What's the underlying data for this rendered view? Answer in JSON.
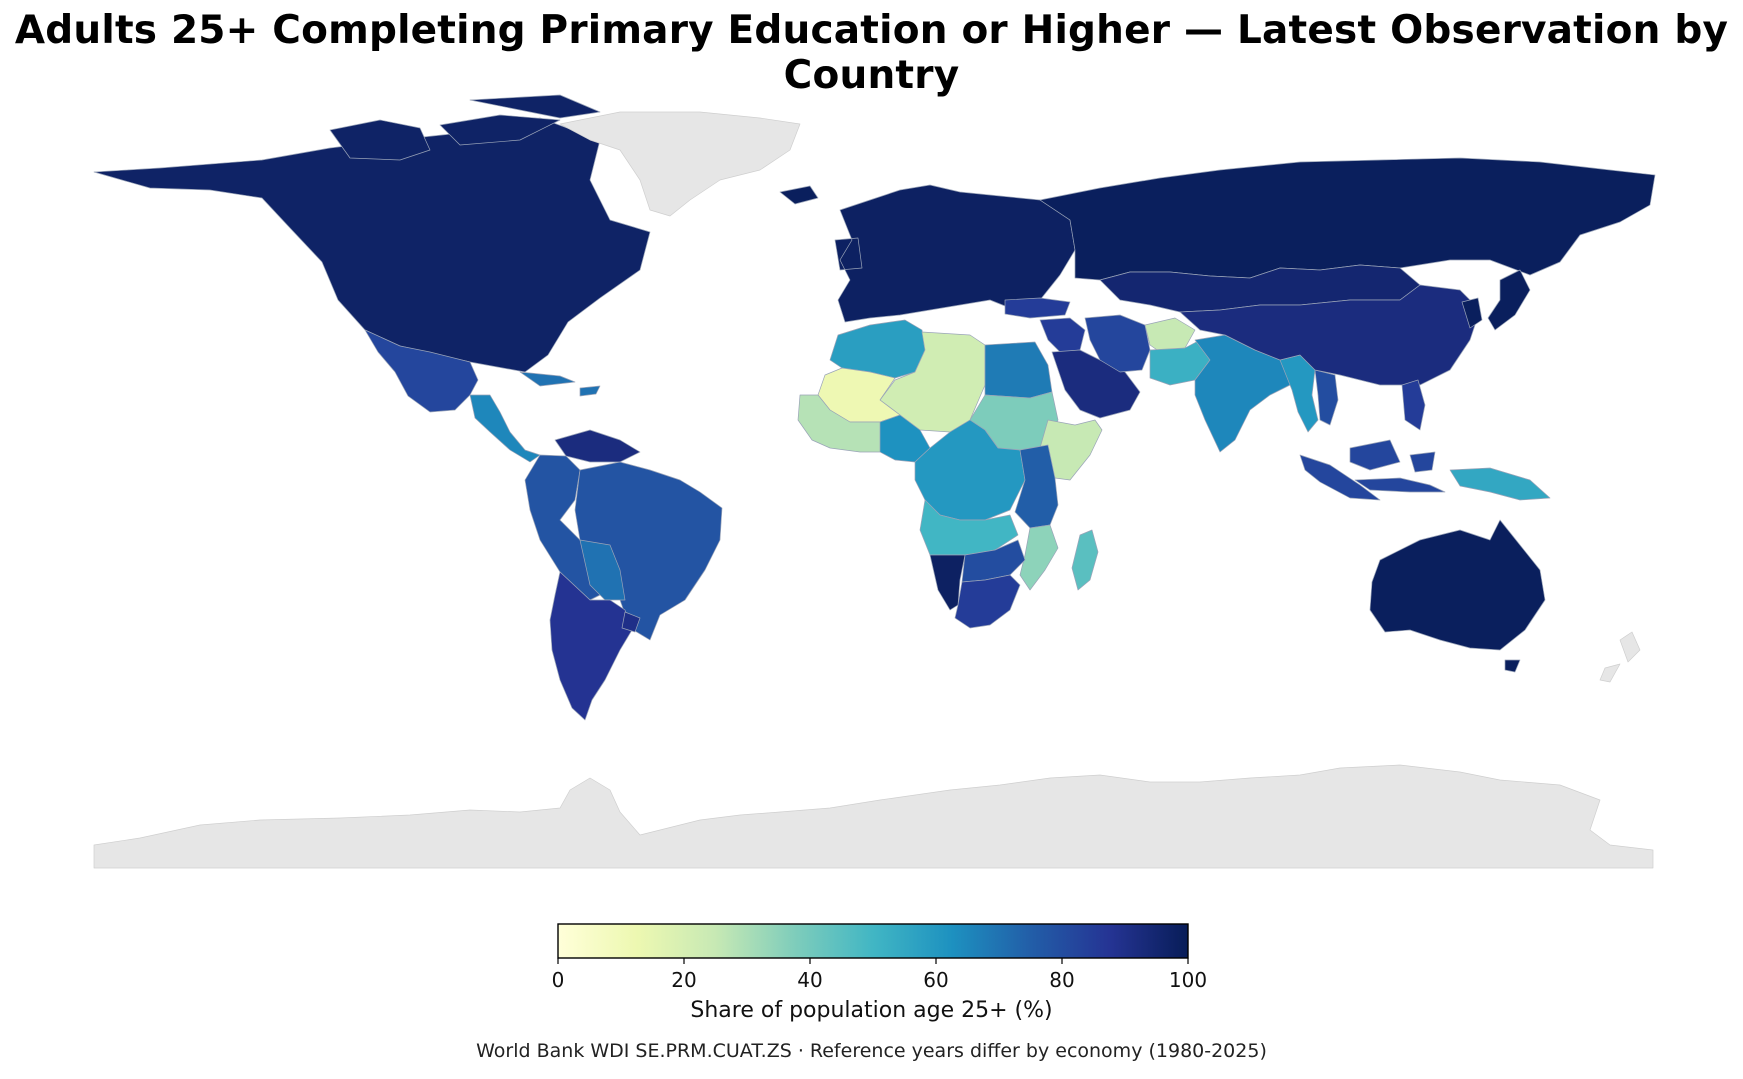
{
  "title": "Adults 25+ Completing Primary Education or Higher — Latest Observation by Country",
  "colorbar": {
    "label": "Share of population age 25+ (%)",
    "ticks": [
      "0",
      "20",
      "40",
      "60",
      "80",
      "100"
    ],
    "min": 0,
    "max": 100,
    "colormap": "YlGnBu",
    "stops": [
      "#ffffd9",
      "#edf8b1",
      "#c7e9b4",
      "#7fcdbb",
      "#41b6c4",
      "#1d91c0",
      "#225ea8",
      "#253494",
      "#081d58"
    ]
  },
  "footnote": "World Bank WDI SE.PRM.CUAT.ZS · Reference years differ by economy (1980-2025)",
  "map_data": {
    "no_data_color": "#e6e6e6",
    "regions": [
      {
        "name": "North America (USA, Canada)",
        "value": 97
      },
      {
        "name": "Greenland",
        "value": null
      },
      {
        "name": "Mexico",
        "value": 82
      },
      {
        "name": "Central America",
        "value": 65
      },
      {
        "name": "Caribbean",
        "value": 70
      },
      {
        "name": "Venezuela",
        "value": 92
      },
      {
        "name": "Colombia / Peru / Ecuador",
        "value": 78
      },
      {
        "name": "Brazil",
        "value": 78
      },
      {
        "name": "Bolivia / Paraguay",
        "value": 70
      },
      {
        "name": "Argentina / Chile",
        "value": 88
      },
      {
        "name": "Uruguay",
        "value": 90
      },
      {
        "name": "Europe",
        "value": 98
      },
      {
        "name": "Russia",
        "value": 99
      },
      {
        "name": "Iceland",
        "value": 99
      },
      {
        "name": "Morocco / Algeria",
        "value": 58
      },
      {
        "name": "Libya / Niger / Chad",
        "value": 22
      },
      {
        "name": "Egypt",
        "value": 68
      },
      {
        "name": "Mali / Mauritania",
        "value": 12
      },
      {
        "name": "West Africa coast",
        "value": 28
      },
      {
        "name": "Nigeria",
        "value": 62
      },
      {
        "name": "Sudan",
        "value": 38
      },
      {
        "name": "Ethiopia / Somalia",
        "value": 25
      },
      {
        "name": "Central Africa",
        "value": 60
      },
      {
        "name": "Kenya / Tanzania",
        "value": 75
      },
      {
        "name": "Angola / Zambia",
        "value": 50
      },
      {
        "name": "Mozambique",
        "value": 35
      },
      {
        "name": "Namibia",
        "value": 98
      },
      {
        "name": "Botswana / Zimbabwe",
        "value": 80
      },
      {
        "name": "South Africa",
        "value": 85
      },
      {
        "name": "Madagascar",
        "value": 45
      },
      {
        "name": "Turkey",
        "value": 85
      },
      {
        "name": "Middle East",
        "value": 85
      },
      {
        "name": "Saudi Arabia",
        "value": 92
      },
      {
        "name": "Iran",
        "value": 82
      },
      {
        "name": "Afghanistan",
        "value": 25
      },
      {
        "name": "Pakistan",
        "value": 52
      },
      {
        "name": "India",
        "value": 65
      },
      {
        "name": "Myanmar / Thailand",
        "value": 60
      },
      {
        "name": "Vietnam",
        "value": 80
      },
      {
        "name": "Kazakhstan / Mongolia",
        "value": 95
      },
      {
        "name": "China",
        "value": 92
      },
      {
        "name": "Japan / Korea",
        "value": 99
      },
      {
        "name": "Indonesia / Malaysia",
        "value": 82
      },
      {
        "name": "Philippines",
        "value": 85
      },
      {
        "name": "Papua New Guinea",
        "value": 55
      },
      {
        "name": "Australia",
        "value": 99
      },
      {
        "name": "New Zealand",
        "value": null
      },
      {
        "name": "Antarctica",
        "value": null
      }
    ]
  }
}
